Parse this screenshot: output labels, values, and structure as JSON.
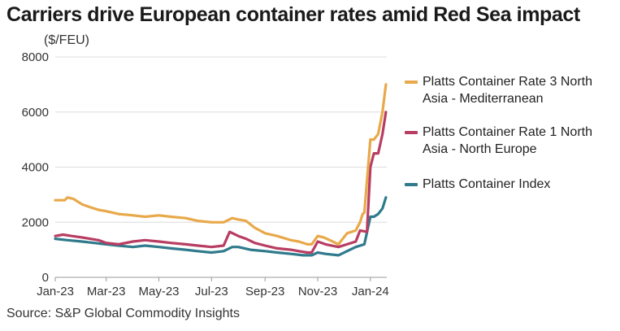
{
  "header": {
    "title": "Carriers drive European container rates amid Red Sea impact",
    "unit": "($/FEU)"
  },
  "footer": {
    "source": "Source: S&P Global Commodity Insights"
  },
  "colors": {
    "med": "#e8a94a",
    "neu": "#b83d62",
    "index": "#2f7a8c",
    "grid": "#dcdcdc",
    "axis": "#999999"
  },
  "chart_data": {
    "type": "line",
    "title": "Carriers drive European container rates amid Red Sea impact",
    "ylabel": "($/FEU)",
    "xlabel": "",
    "ylim": [
      0,
      8000
    ],
    "xlim": [
      "2023-01-01",
      "2024-01-20"
    ],
    "y_ticks": [
      0,
      2000,
      4000,
      6000,
      8000
    ],
    "y_tick_labels": [
      "0",
      "2000",
      "4000",
      "6000",
      "8000"
    ],
    "x_ticks": [
      "2023-01-01",
      "2023-03-01",
      "2023-05-01",
      "2023-07-01",
      "2023-09-01",
      "2023-11-01",
      "2024-01-01"
    ],
    "x_tick_labels": [
      "Jan-23",
      "Mar-23",
      "May-23",
      "Jul-23",
      "Sep-23",
      "Nov-23",
      "Jan-24"
    ],
    "grid": "horizontal",
    "legend_position": "right",
    "series": [
      {
        "name": "Platts Container Rate 3 North Asia - Mediterranean",
        "color_key": "med",
        "x": [
          "2023-01-01",
          "2023-01-12",
          "2023-01-15",
          "2023-01-22",
          "2023-02-01",
          "2023-02-10",
          "2023-02-20",
          "2023-03-01",
          "2023-03-15",
          "2023-04-01",
          "2023-04-15",
          "2023-05-01",
          "2023-05-15",
          "2023-06-01",
          "2023-06-15",
          "2023-07-01",
          "2023-07-15",
          "2023-07-25",
          "2023-08-01",
          "2023-08-10",
          "2023-08-20",
          "2023-09-01",
          "2023-09-15",
          "2023-10-01",
          "2023-10-10",
          "2023-10-20",
          "2023-10-25",
          "2023-11-01",
          "2023-11-08",
          "2023-11-15",
          "2023-11-25",
          "2023-12-05",
          "2023-12-15",
          "2023-12-20",
          "2023-12-23",
          "2023-12-25",
          "2024-01-01",
          "2024-01-05",
          "2024-01-10",
          "2024-01-15",
          "2024-01-19"
        ],
        "y": [
          2800,
          2800,
          2900,
          2850,
          2650,
          2550,
          2450,
          2400,
          2300,
          2250,
          2200,
          2250,
          2200,
          2150,
          2050,
          2000,
          2000,
          2150,
          2100,
          2050,
          1800,
          1600,
          1500,
          1350,
          1300,
          1200,
          1200,
          1500,
          1450,
          1350,
          1200,
          1600,
          1700,
          2000,
          2300,
          2350,
          5000,
          5000,
          5200,
          6000,
          7000
        ]
      },
      {
        "name": "Platts Container Rate 1 North Asia - North Europe",
        "color_key": "neu",
        "x": [
          "2023-01-01",
          "2023-01-10",
          "2023-01-20",
          "2023-02-01",
          "2023-02-20",
          "2023-03-01",
          "2023-03-15",
          "2023-04-01",
          "2023-04-15",
          "2023-05-01",
          "2023-05-15",
          "2023-06-01",
          "2023-06-15",
          "2023-07-01",
          "2023-07-15",
          "2023-07-22",
          "2023-08-01",
          "2023-08-10",
          "2023-08-20",
          "2023-09-01",
          "2023-09-15",
          "2023-10-01",
          "2023-10-10",
          "2023-10-20",
          "2023-10-25",
          "2023-11-01",
          "2023-11-10",
          "2023-11-25",
          "2023-12-05",
          "2023-12-15",
          "2023-12-20",
          "2023-12-28",
          "2024-01-01",
          "2024-01-05",
          "2024-01-10",
          "2024-01-15",
          "2024-01-19"
        ],
        "y": [
          1500,
          1550,
          1500,
          1450,
          1350,
          1250,
          1200,
          1300,
          1350,
          1300,
          1250,
          1200,
          1150,
          1100,
          1150,
          1650,
          1500,
          1400,
          1250,
          1150,
          1050,
          1000,
          950,
          900,
          900,
          1300,
          1200,
          1100,
          1200,
          1300,
          1700,
          1650,
          4000,
          4500,
          4500,
          5200,
          6000
        ]
      },
      {
        "name": "Platts Container Index",
        "color_key": "index",
        "x": [
          "2023-01-01",
          "2023-01-15",
          "2023-02-01",
          "2023-02-15",
          "2023-03-01",
          "2023-03-15",
          "2023-04-01",
          "2023-04-15",
          "2023-05-01",
          "2023-05-15",
          "2023-06-01",
          "2023-06-15",
          "2023-07-01",
          "2023-07-15",
          "2023-07-25",
          "2023-08-01",
          "2023-08-15",
          "2023-09-01",
          "2023-09-15",
          "2023-10-01",
          "2023-10-15",
          "2023-10-25",
          "2023-11-01",
          "2023-11-10",
          "2023-11-25",
          "2023-12-05",
          "2023-12-15",
          "2023-12-25",
          "2024-01-01",
          "2024-01-05",
          "2024-01-10",
          "2024-01-15",
          "2024-01-19"
        ],
        "y": [
          1400,
          1350,
          1300,
          1250,
          1200,
          1150,
          1100,
          1150,
          1100,
          1050,
          1000,
          950,
          900,
          950,
          1100,
          1100,
          1000,
          950,
          900,
          850,
          800,
          800,
          900,
          850,
          800,
          950,
          1100,
          1200,
          2200,
          2200,
          2300,
          2500,
          2900
        ]
      }
    ]
  }
}
